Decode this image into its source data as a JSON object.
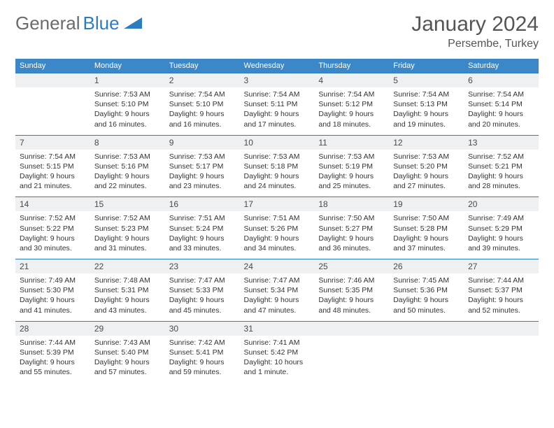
{
  "brand": {
    "part1": "General",
    "part2": "Blue",
    "color1": "#6b6b6b",
    "color2": "#2e7cc0"
  },
  "title": "January 2024",
  "subtitle": "Persembe, Turkey",
  "colors": {
    "header_bg": "#3b87c8",
    "header_text": "#ffffff",
    "daynum_bg": "#eef0f1",
    "border": "#2e7cc0",
    "text": "#333333",
    "background": "#ffffff"
  },
  "dayHeaders": [
    "Sunday",
    "Monday",
    "Tuesday",
    "Wednesday",
    "Thursday",
    "Friday",
    "Saturday"
  ],
  "weeks": [
    {
      "days": [
        {
          "num": "",
          "lines": []
        },
        {
          "num": "1",
          "lines": [
            "Sunrise: 7:53 AM",
            "Sunset: 5:10 PM",
            "Daylight: 9 hours",
            "and 16 minutes."
          ]
        },
        {
          "num": "2",
          "lines": [
            "Sunrise: 7:54 AM",
            "Sunset: 5:10 PM",
            "Daylight: 9 hours",
            "and 16 minutes."
          ]
        },
        {
          "num": "3",
          "lines": [
            "Sunrise: 7:54 AM",
            "Sunset: 5:11 PM",
            "Daylight: 9 hours",
            "and 17 minutes."
          ]
        },
        {
          "num": "4",
          "lines": [
            "Sunrise: 7:54 AM",
            "Sunset: 5:12 PM",
            "Daylight: 9 hours",
            "and 18 minutes."
          ]
        },
        {
          "num": "5",
          "lines": [
            "Sunrise: 7:54 AM",
            "Sunset: 5:13 PM",
            "Daylight: 9 hours",
            "and 19 minutes."
          ]
        },
        {
          "num": "6",
          "lines": [
            "Sunrise: 7:54 AM",
            "Sunset: 5:14 PM",
            "Daylight: 9 hours",
            "and 20 minutes."
          ]
        }
      ]
    },
    {
      "days": [
        {
          "num": "7",
          "lines": [
            "Sunrise: 7:54 AM",
            "Sunset: 5:15 PM",
            "Daylight: 9 hours",
            "and 21 minutes."
          ]
        },
        {
          "num": "8",
          "lines": [
            "Sunrise: 7:53 AM",
            "Sunset: 5:16 PM",
            "Daylight: 9 hours",
            "and 22 minutes."
          ]
        },
        {
          "num": "9",
          "lines": [
            "Sunrise: 7:53 AM",
            "Sunset: 5:17 PM",
            "Daylight: 9 hours",
            "and 23 minutes."
          ]
        },
        {
          "num": "10",
          "lines": [
            "Sunrise: 7:53 AM",
            "Sunset: 5:18 PM",
            "Daylight: 9 hours",
            "and 24 minutes."
          ]
        },
        {
          "num": "11",
          "lines": [
            "Sunrise: 7:53 AM",
            "Sunset: 5:19 PM",
            "Daylight: 9 hours",
            "and 25 minutes."
          ]
        },
        {
          "num": "12",
          "lines": [
            "Sunrise: 7:53 AM",
            "Sunset: 5:20 PM",
            "Daylight: 9 hours",
            "and 27 minutes."
          ]
        },
        {
          "num": "13",
          "lines": [
            "Sunrise: 7:52 AM",
            "Sunset: 5:21 PM",
            "Daylight: 9 hours",
            "and 28 minutes."
          ]
        }
      ]
    },
    {
      "days": [
        {
          "num": "14",
          "lines": [
            "Sunrise: 7:52 AM",
            "Sunset: 5:22 PM",
            "Daylight: 9 hours",
            "and 30 minutes."
          ]
        },
        {
          "num": "15",
          "lines": [
            "Sunrise: 7:52 AM",
            "Sunset: 5:23 PM",
            "Daylight: 9 hours",
            "and 31 minutes."
          ]
        },
        {
          "num": "16",
          "lines": [
            "Sunrise: 7:51 AM",
            "Sunset: 5:24 PM",
            "Daylight: 9 hours",
            "and 33 minutes."
          ]
        },
        {
          "num": "17",
          "lines": [
            "Sunrise: 7:51 AM",
            "Sunset: 5:26 PM",
            "Daylight: 9 hours",
            "and 34 minutes."
          ]
        },
        {
          "num": "18",
          "lines": [
            "Sunrise: 7:50 AM",
            "Sunset: 5:27 PM",
            "Daylight: 9 hours",
            "and 36 minutes."
          ]
        },
        {
          "num": "19",
          "lines": [
            "Sunrise: 7:50 AM",
            "Sunset: 5:28 PM",
            "Daylight: 9 hours",
            "and 37 minutes."
          ]
        },
        {
          "num": "20",
          "lines": [
            "Sunrise: 7:49 AM",
            "Sunset: 5:29 PM",
            "Daylight: 9 hours",
            "and 39 minutes."
          ]
        }
      ]
    },
    {
      "days": [
        {
          "num": "21",
          "lines": [
            "Sunrise: 7:49 AM",
            "Sunset: 5:30 PM",
            "Daylight: 9 hours",
            "and 41 minutes."
          ]
        },
        {
          "num": "22",
          "lines": [
            "Sunrise: 7:48 AM",
            "Sunset: 5:31 PM",
            "Daylight: 9 hours",
            "and 43 minutes."
          ]
        },
        {
          "num": "23",
          "lines": [
            "Sunrise: 7:47 AM",
            "Sunset: 5:33 PM",
            "Daylight: 9 hours",
            "and 45 minutes."
          ]
        },
        {
          "num": "24",
          "lines": [
            "Sunrise: 7:47 AM",
            "Sunset: 5:34 PM",
            "Daylight: 9 hours",
            "and 47 minutes."
          ]
        },
        {
          "num": "25",
          "lines": [
            "Sunrise: 7:46 AM",
            "Sunset: 5:35 PM",
            "Daylight: 9 hours",
            "and 48 minutes."
          ]
        },
        {
          "num": "26",
          "lines": [
            "Sunrise: 7:45 AM",
            "Sunset: 5:36 PM",
            "Daylight: 9 hours",
            "and 50 minutes."
          ]
        },
        {
          "num": "27",
          "lines": [
            "Sunrise: 7:44 AM",
            "Sunset: 5:37 PM",
            "Daylight: 9 hours",
            "and 52 minutes."
          ]
        }
      ]
    },
    {
      "days": [
        {
          "num": "28",
          "lines": [
            "Sunrise: 7:44 AM",
            "Sunset: 5:39 PM",
            "Daylight: 9 hours",
            "and 55 minutes."
          ]
        },
        {
          "num": "29",
          "lines": [
            "Sunrise: 7:43 AM",
            "Sunset: 5:40 PM",
            "Daylight: 9 hours",
            "and 57 minutes."
          ]
        },
        {
          "num": "30",
          "lines": [
            "Sunrise: 7:42 AM",
            "Sunset: 5:41 PM",
            "Daylight: 9 hours",
            "and 59 minutes."
          ]
        },
        {
          "num": "31",
          "lines": [
            "Sunrise: 7:41 AM",
            "Sunset: 5:42 PM",
            "Daylight: 10 hours",
            "and 1 minute."
          ]
        },
        {
          "num": "",
          "lines": []
        },
        {
          "num": "",
          "lines": []
        },
        {
          "num": "",
          "lines": []
        }
      ]
    }
  ]
}
